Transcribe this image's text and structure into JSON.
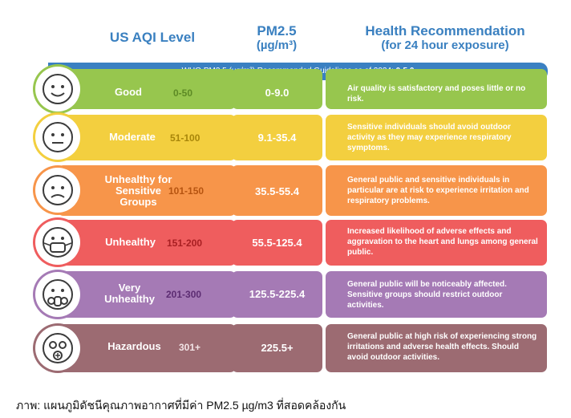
{
  "headers": {
    "aqi": "US AQI Level",
    "pm_line1": "PM2.5",
    "pm_line2": "(µg/m³)",
    "rec_line1": "Health Recommendation",
    "rec_line2": "(for 24 hour exposure)"
  },
  "who_banner": {
    "text": "WHO PM2.5 (µg/m³) Recommended Guidelines as of 2024:",
    "value": "0-5.0"
  },
  "rows": [
    {
      "level": "Good",
      "range": "0-50",
      "pm": "0-9.0",
      "recommendation": "Air quality is satisfactory and poses little or no risk.",
      "color": "#97c64e",
      "range_color": "#5d8a25",
      "face": "smile-face-icon"
    },
    {
      "level": "Moderate",
      "range": "51-100",
      "pm": "9.1-35.4",
      "recommendation": "Sensitive individuals should avoid outdoor activity as they may experience respiratory symptoms.",
      "color": "#f3cf3f",
      "range_color": "#a8860a",
      "face": "neutral-face-icon"
    },
    {
      "level": "Unhealthy for Sensitive Groups",
      "range": "101-150",
      "pm": "35.5-55.4",
      "recommendation": "General public and sensitive individuals in particular are at risk to experience irritation and respiratory problems.",
      "color": "#f7954a",
      "range_color": "#b65410",
      "face": "frown-face-icon"
    },
    {
      "level": "Unhealthy",
      "range": "151-200",
      "pm": "55.5-125.4",
      "recommendation": "Increased likelihood of adverse effects and aggravation to the heart and lungs among general public.",
      "color": "#ef5d5e",
      "range_color": "#a81f22",
      "face": "mask-face-icon"
    },
    {
      "level": "Very Unhealthy",
      "range": "201-300",
      "pm": "125.5-225.4",
      "recommendation": "General public will be noticeably affected. Sensitive groups should restrict outdoor activities.",
      "color": "#a57ab5",
      "range_color": "#5c2c72",
      "face": "respirator-face-icon"
    },
    {
      "level": "Hazardous",
      "range": "301+",
      "pm": "225.5+",
      "recommendation": "General public at high risk of experiencing strong irritations and adverse health effects. Should avoid outdoor activities.",
      "color": "#9c6b72",
      "range_color": "#f2e4e6",
      "face": "gas-mask-face-icon"
    }
  ],
  "caption": "ภาพ: แผนภูมิดัชนีคุณภาพอากาศที่มีค่า PM2.5 µg/m3 ที่สอดคล้องกัน"
}
